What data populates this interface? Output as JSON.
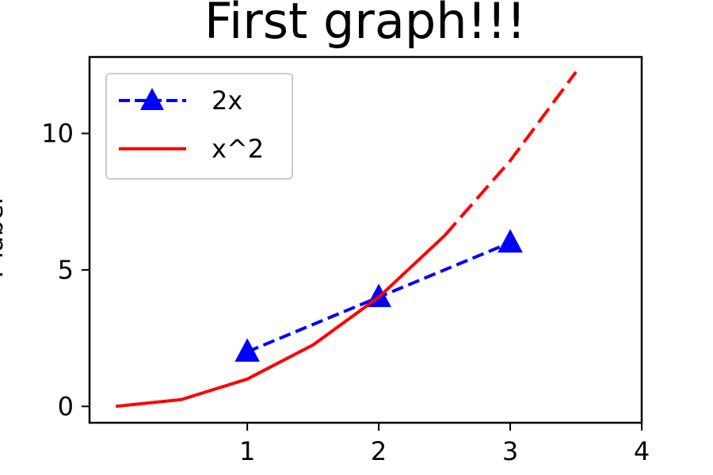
{
  "chart_data": {
    "type": "line",
    "title": "First graph!!!",
    "xlabel": "",
    "ylabel": "Y label",
    "xlim": [
      -0.2,
      4.0
    ],
    "ylim": [
      -0.6,
      12.8
    ],
    "xticks": [
      1,
      2,
      3,
      4
    ],
    "yticks": [
      0,
      5,
      10
    ],
    "grid": false,
    "legend": "upper-left",
    "series": [
      {
        "name": "2x",
        "color": "#0000ff",
        "linestyle": "dashed",
        "marker": "triangle",
        "x": [
          1,
          2,
          3
        ],
        "y": [
          2,
          4,
          6
        ]
      },
      {
        "name": "x^2",
        "color": "#ff0000",
        "linestyle": "solid-then-dashed",
        "marker": "none",
        "x": [
          0,
          0.5,
          1,
          1.5,
          2,
          2.5,
          3,
          3.5
        ],
        "y": [
          0,
          0.25,
          1,
          2.25,
          4,
          6.25,
          9,
          12.25
        ]
      }
    ]
  }
}
